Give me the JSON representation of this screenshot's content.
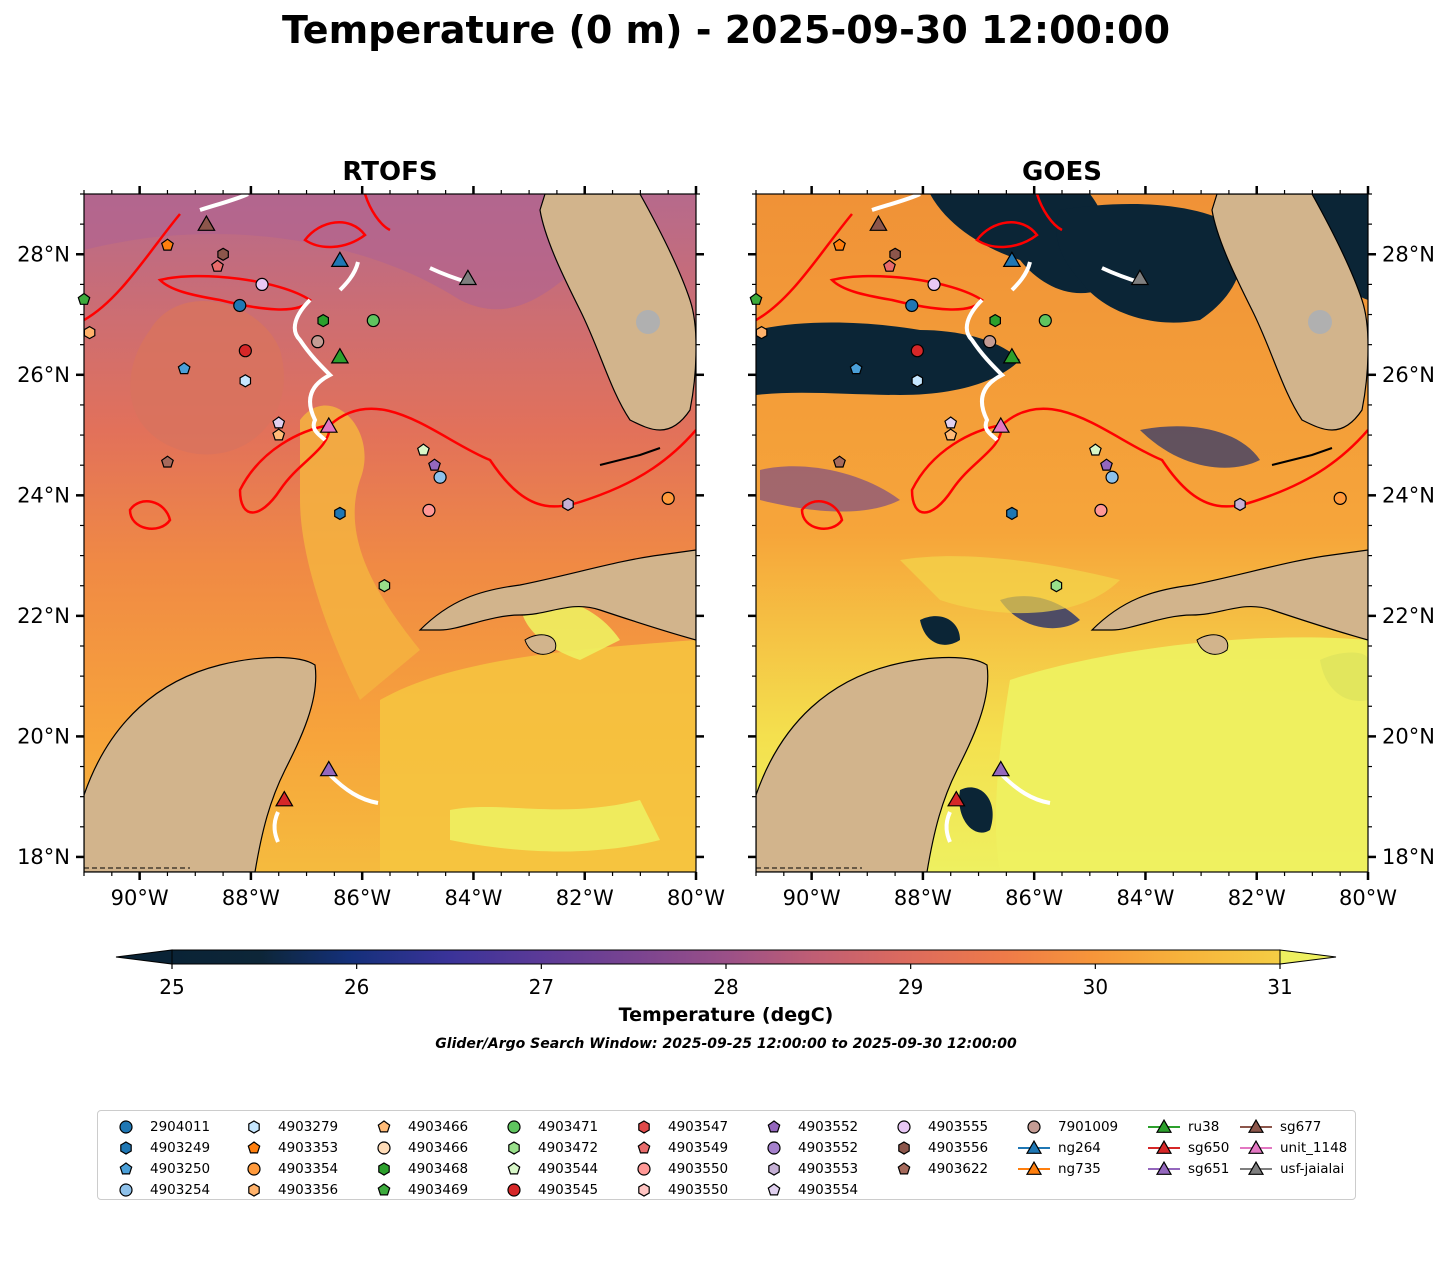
{
  "title": "Temperature (0 m) - 2025-09-30 12:00:00",
  "panels": [
    {
      "title": "RTOFS",
      "kind": "model"
    },
    {
      "title": "GOES",
      "kind": "satellite"
    }
  ],
  "axes": {
    "lon_range": [
      -91,
      -80
    ],
    "lat_range": [
      17.75,
      29
    ],
    "lon_ticks": [
      "90°W",
      "88°W",
      "86°W",
      "84°W",
      "82°W",
      "80°W"
    ],
    "lat_ticks": [
      "18°N",
      "20°N",
      "22°N",
      "24°N",
      "26°N",
      "28°N"
    ]
  },
  "colorbar": {
    "label": "Temperature (degC)",
    "ticks": [
      "25",
      "26",
      "27",
      "28",
      "29",
      "30",
      "31"
    ],
    "range": [
      25,
      31
    ],
    "extend": "both"
  },
  "search_window": "Glider/Argo Search Window: 2025-09-25 12:00:00 to 2025-09-30 12:00:00",
  "legend": {
    "columns": [
      [
        {
          "label": "2904011",
          "marker": "circle",
          "color": "#1f77b4"
        },
        {
          "label": "4903249",
          "marker": "hexagon",
          "color": "#1f77b4"
        },
        {
          "label": "4903250",
          "marker": "pentagon",
          "color": "#4a9fd8"
        },
        {
          "label": "4903254",
          "marker": "circle",
          "color": "#8ec1ea"
        }
      ],
      [
        {
          "label": "4903279",
          "marker": "hexagon",
          "color": "#c6e7ff"
        },
        {
          "label": "4903353",
          "marker": "pentagon",
          "color": "#ff7f0e"
        },
        {
          "label": "4903354",
          "marker": "circle",
          "color": "#ff9a3c"
        },
        {
          "label": "4903356",
          "marker": "hexagon",
          "color": "#ffb26b"
        }
      ],
      [
        {
          "label": "4903466",
          "marker": "pentagon",
          "color": "#ffbb78"
        },
        {
          "label": "4903466",
          "marker": "circle",
          "color": "#ffdcb8"
        },
        {
          "label": "4903468",
          "marker": "hexagon",
          "color": "#2ca02c"
        },
        {
          "label": "4903469",
          "marker": "pentagon",
          "color": "#3cab3c"
        }
      ],
      [
        {
          "label": "4903471",
          "marker": "circle",
          "color": "#5fc45f"
        },
        {
          "label": "4903472",
          "marker": "hexagon",
          "color": "#98df8a"
        },
        {
          "label": "4903544",
          "marker": "pentagon",
          "color": "#d8f7c8"
        },
        {
          "label": "4903545",
          "marker": "circle",
          "color": "#d62728"
        }
      ],
      [
        {
          "label": "4903547",
          "marker": "hexagon",
          "color": "#e04a4a"
        },
        {
          "label": "4903549",
          "marker": "pentagon",
          "color": "#e86b6b"
        },
        {
          "label": "4903550",
          "marker": "circle",
          "color": "#ff9896"
        },
        {
          "label": "4903550",
          "marker": "hexagon",
          "color": "#ffc4c2"
        }
      ],
      [
        {
          "label": "4903552",
          "marker": "pentagon",
          "color": "#9467bd"
        },
        {
          "label": "4903552",
          "marker": "circle",
          "color": "#a580cc"
        },
        {
          "label": "4903553",
          "marker": "hexagon",
          "color": "#c5b0d5"
        },
        {
          "label": "4903554",
          "marker": "pentagon",
          "color": "#e0d0ef"
        }
      ],
      [
        {
          "label": "4903555",
          "marker": "circle",
          "color": "#e8c8f5"
        },
        {
          "label": "4903556",
          "marker": "hexagon",
          "color": "#8c564b"
        },
        {
          "label": "4903622",
          "marker": "pentagon",
          "color": "#a66a5c"
        }
      ],
      [
        {
          "label": "7901009",
          "marker": "circle",
          "color": "#c49c94"
        },
        {
          "label": "ng264",
          "marker": "triangle",
          "color": "#1f77b4"
        },
        {
          "label": "ng735",
          "marker": "triangle",
          "color": "#ff7f0e"
        }
      ],
      [
        {
          "label": "ru38",
          "marker": "triangle",
          "color": "#2ca02c"
        },
        {
          "label": "sg650",
          "marker": "triangle",
          "color": "#d62728"
        },
        {
          "label": "sg651",
          "marker": "triangle",
          "color": "#9467bd"
        }
      ],
      [
        {
          "label": "sg677",
          "marker": "triangle",
          "color": "#8c564b"
        },
        {
          "label": "unit_1148",
          "marker": "triangle",
          "color": "#e377c2"
        },
        {
          "label": "usf-jaialai",
          "marker": "triangle",
          "color": "#7f7f7f"
        }
      ]
    ]
  },
  "map_data": {
    "argo_floats": [
      {
        "id": "2904011",
        "lon": -88.2,
        "lat": 27.15
      },
      {
        "id": "4903249",
        "lon": -86.4,
        "lat": 23.7
      },
      {
        "id": "4903250",
        "lon": -89.2,
        "lat": 26.1
      },
      {
        "id": "4903254",
        "lon": -84.6,
        "lat": 24.3
      },
      {
        "id": "4903279",
        "lon": -88.1,
        "lat": 25.9
      },
      {
        "id": "4903353",
        "lon": -89.5,
        "lat": 28.15
      },
      {
        "id": "4903354",
        "lon": -80.5,
        "lat": 23.95
      },
      {
        "id": "4903356",
        "lon": -90.9,
        "lat": 26.7
      },
      {
        "id": "4903466",
        "lon": -87.5,
        "lat": 25.0
      },
      {
        "id": "4903468",
        "lon": -86.7,
        "lat": 26.9
      },
      {
        "id": "4903469",
        "lon": -91.0,
        "lat": 27.25
      },
      {
        "id": "4903471",
        "lon": -85.8,
        "lat": 26.9
      },
      {
        "id": "4903472",
        "lon": -85.6,
        "lat": 22.5
      },
      {
        "id": "4903544",
        "lon": -84.9,
        "lat": 24.75
      },
      {
        "id": "4903545",
        "lon": -88.1,
        "lat": 26.4
      },
      {
        "id": "4903549",
        "lon": -88.6,
        "lat": 27.8
      },
      {
        "id": "4903550",
        "lon": -84.8,
        "lat": 23.75
      },
      {
        "id": "4903552",
        "lon": -84.7,
        "lat": 24.5
      },
      {
        "id": "4903553",
        "lon": -82.3,
        "lat": 23.85
      },
      {
        "id": "4903554",
        "lon": -87.5,
        "lat": 25.2
      },
      {
        "id": "4903555",
        "lon": -87.8,
        "lat": 27.5
      },
      {
        "id": "4903556",
        "lon": -88.5,
        "lat": 28.0
      },
      {
        "id": "4903622",
        "lon": -89.5,
        "lat": 24.55
      },
      {
        "id": "7901009",
        "lon": -86.8,
        "lat": 26.55
      }
    ],
    "gliders": [
      {
        "id": "ng264",
        "lon": -86.4,
        "lat": 27.9
      },
      {
        "id": "ru38",
        "lon": -86.4,
        "lat": 26.3
      },
      {
        "id": "sg650",
        "lon": -87.4,
        "lat": 18.95
      },
      {
        "id": "sg651",
        "lon": -86.6,
        "lat": 19.45
      },
      {
        "id": "sg677",
        "lon": -88.8,
        "lat": 28.5
      },
      {
        "id": "unit_1148",
        "lon": -86.6,
        "lat": 25.15
      },
      {
        "id": "usf-jaialai",
        "lon": -84.1,
        "lat": 27.6
      }
    ]
  },
  "colors": {
    "land": "#d2b48c",
    "contour": "#ff0000",
    "track": "#ffffff",
    "water_feature": "#a8c4e0"
  }
}
